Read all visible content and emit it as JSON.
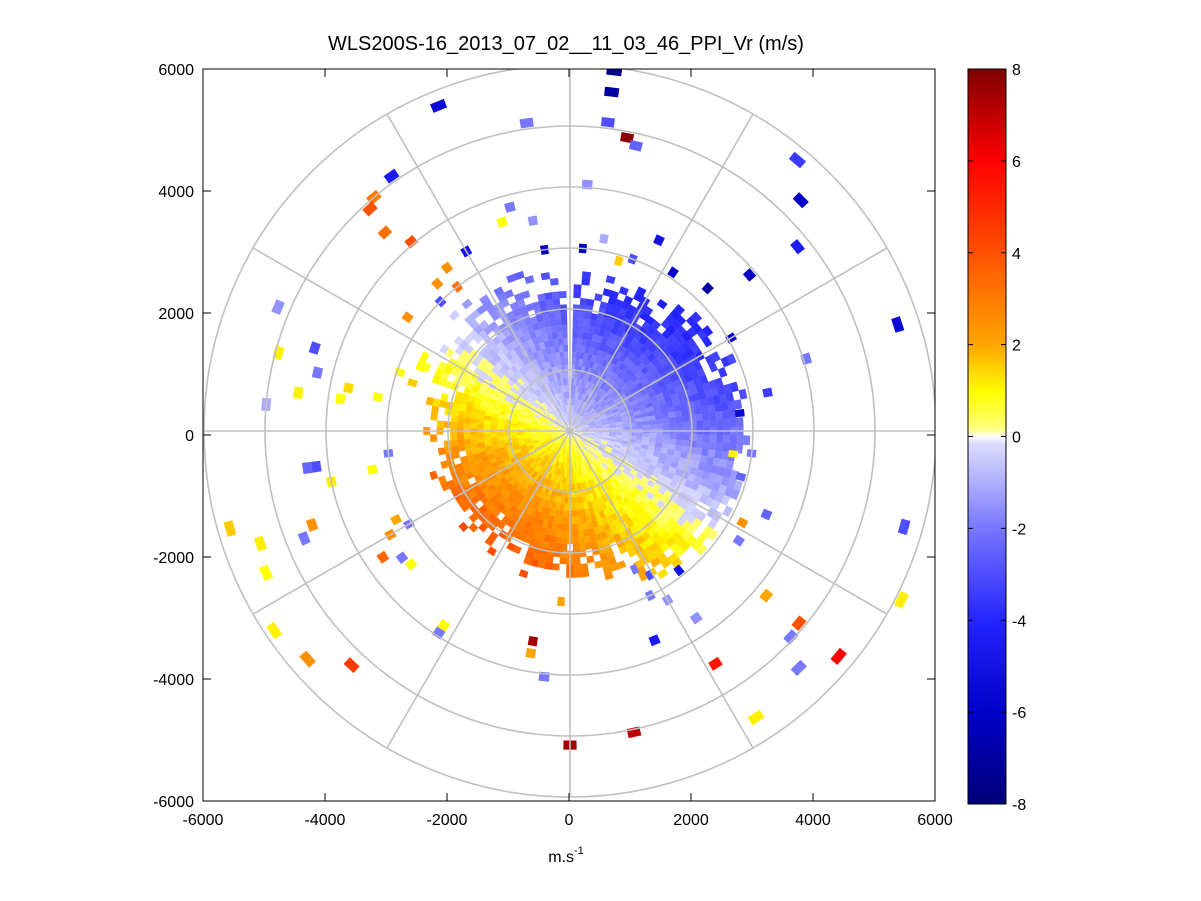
{
  "chart_data": {
    "type": "heatmap",
    "subtype": "polar-ppi",
    "title": "WLS200S-16_2013_07_02__11_03_46_PPI_Vr (m/s)",
    "xlabel": "m.s",
    "xlabel_sup": "-1",
    "ylabel": "",
    "xlim": [
      -6000,
      6000
    ],
    "ylim": [
      -6000,
      6000
    ],
    "xticks": [
      "-6000",
      "-4000",
      "-2000",
      "0",
      "2000",
      "4000",
      "6000"
    ],
    "yticks": [
      "6000",
      "4000",
      "2000",
      "0",
      "-2000",
      "-4000",
      "-6000"
    ],
    "grid_rings": [
      1000,
      2000,
      3000,
      4000,
      5000,
      6000
    ],
    "grid_spokes_deg": [
      0,
      30,
      60,
      90,
      120,
      150,
      180,
      210,
      240,
      270,
      300,
      330
    ],
    "colorbar": {
      "min": -8,
      "max": 8,
      "ticks": [
        "8",
        "6",
        "4",
        "2",
        "0",
        "-2",
        "-4",
        "-6",
        "-8"
      ],
      "colormap": "blue-white-yellow-red"
    },
    "core": {
      "r_min": 150,
      "r_max": 2900,
      "gap_azimuth_deg": [
        -2,
        2
      ],
      "description": "radial velocity field: negative (blue) on north/east side, positive (yellow) on south-west side"
    },
    "scatter_gates": [
      {
        "az": 7,
        "r": 5950,
        "v": -7.5
      },
      {
        "az": 7,
        "r": 5600,
        "v": -7
      },
      {
        "az": 7,
        "r": 5100,
        "v": -3
      },
      {
        "az": 11,
        "r": 4900,
        "v": 7.8
      },
      {
        "az": 13,
        "r": 4800,
        "v": -2.5
      },
      {
        "az": -8,
        "r": 5100,
        "v": -2
      },
      {
        "az": -22,
        "r": 5750,
        "v": -5.5
      },
      {
        "az": 4,
        "r": 4050,
        "v": -1.5
      },
      {
        "az": -15,
        "r": 3800,
        "v": -2
      },
      {
        "az": -18,
        "r": 3600,
        "v": 0.8
      },
      {
        "az": -10,
        "r": 3500,
        "v": -1.5
      },
      {
        "az": -8,
        "r": 3000,
        "v": -6
      },
      {
        "az": 4,
        "r": 3000,
        "v": -6
      },
      {
        "az": 10,
        "r": 3200,
        "v": -1
      },
      {
        "az": 16,
        "r": 2900,
        "v": 1.5
      },
      {
        "az": -30,
        "r": 3400,
        "v": -5
      },
      {
        "az": -35,
        "r": 5100,
        "v": -4.5
      },
      {
        "az": -40,
        "r": 5000,
        "v": 3
      },
      {
        "az": -42,
        "r": 4900,
        "v": 4
      },
      {
        "az": -43,
        "r": 4450,
        "v": 3.2
      },
      {
        "az": -40,
        "r": 4050,
        "v": 4
      },
      {
        "az": -37,
        "r": 3350,
        "v": 2.5
      },
      {
        "az": -42,
        "r": 3250,
        "v": 2.5
      },
      {
        "az": -38,
        "r": 3000,
        "v": 3.3
      },
      {
        "az": -45,
        "r": 3000,
        "v": -3
      },
      {
        "az": -55,
        "r": 3250,
        "v": 2.5
      },
      {
        "az": -67,
        "r": 5200,
        "v": -1.5
      },
      {
        "az": -72,
        "r": 4400,
        "v": -3
      },
      {
        "az": -75,
        "r": 4950,
        "v": 1
      },
      {
        "az": -77,
        "r": 4250,
        "v": -2
      },
      {
        "az": -80,
        "r": 3200,
        "v": 0.8
      },
      {
        "az": -79,
        "r": 3700,
        "v": 1.3
      },
      {
        "az": -82,
        "r": 3800,
        "v": 0.8
      },
      {
        "az": -85,
        "r": 5000,
        "v": -1
      },
      {
        "az": -82,
        "r": 4500,
        "v": 1
      },
      {
        "az": -71,
        "r": 2950,
        "v": 0.8
      },
      {
        "az": -73,
        "r": 2700,
        "v": 1.5
      },
      {
        "az": -67,
        "r": 2650,
        "v": 0.8
      },
      {
        "az": -98,
        "r": 4200,
        "v": -3
      },
      {
        "az": -102,
        "r": 4000,
        "v": 1
      },
      {
        "az": -97,
        "r": 3000,
        "v": -2
      },
      {
        "az": -101,
        "r": 3300,
        "v": 0.8
      },
      {
        "az": -98,
        "r": 4350,
        "v": -2.5
      },
      {
        "az": -110,
        "r": 5400,
        "v": 1
      },
      {
        "az": -106,
        "r": 5800,
        "v": 1.5
      },
      {
        "az": -115,
        "r": 5500,
        "v": 0.8
      },
      {
        "az": -112,
        "r": 4700,
        "v": -2
      },
      {
        "az": -110,
        "r": 4500,
        "v": 2.5
      },
      {
        "az": -117,
        "r": 3200,
        "v": 2
      },
      {
        "az": -120,
        "r": 3400,
        "v": 2.5
      },
      {
        "az": -120,
        "r": 3050,
        "v": -2
      },
      {
        "az": -124,
        "r": 3700,
        "v": 3.5
      },
      {
        "az": -127,
        "r": 3450,
        "v": -2
      },
      {
        "az": -130,
        "r": 3400,
        "v": 0.8
      },
      {
        "az": -124,
        "r": 5850,
        "v": 1
      },
      {
        "az": -131,
        "r": 5700,
        "v": 2.5
      },
      {
        "az": -137,
        "r": 5250,
        "v": 4.5
      },
      {
        "az": -147,
        "r": 3800,
        "v": 0.8
      },
      {
        "az": -147,
        "r": 3950,
        "v": -2
      },
      {
        "az": -170,
        "r": 3500,
        "v": 7.5
      },
      {
        "az": -170,
        "r": 3700,
        "v": 2
      },
      {
        "az": -174,
        "r": 4050,
        "v": -2
      },
      {
        "az": -177,
        "r": 2800,
        "v": 2
      },
      {
        "az": -180,
        "r": 5150,
        "v": 7.5
      },
      {
        "az": 168,
        "r": 5050,
        "v": 7
      },
      {
        "az": 158,
        "r": 3700,
        "v": -4.5
      },
      {
        "az": 154,
        "r": 3000,
        "v": -2
      },
      {
        "az": 151,
        "r": 2700,
        "v": -3
      },
      {
        "az": 150,
        "r": 3200,
        "v": -1.5
      },
      {
        "az": 146,
        "r": 3700,
        "v": -1.5
      },
      {
        "az": 155,
        "r": 2500,
        "v": -2
      },
      {
        "az": 142,
        "r": 2900,
        "v": -5
      },
      {
        "az": 148,
        "r": 4500,
        "v": 5.5
      },
      {
        "az": 147,
        "r": 5600,
        "v": 1
      },
      {
        "az": 136,
        "r": 5400,
        "v": -2
      },
      {
        "az": 133,
        "r": 4950,
        "v": -2
      },
      {
        "az": 130,
        "r": 5750,
        "v": 6
      },
      {
        "az": 130,
        "r": 4900,
        "v": 4
      },
      {
        "az": 130,
        "r": 4200,
        "v": 2
      },
      {
        "az": 118,
        "r": 3200,
        "v": 2.5
      },
      {
        "az": 123,
        "r": 3300,
        "v": -2
      },
      {
        "az": 113,
        "r": 3500,
        "v": -2.5
      },
      {
        "az": 117,
        "r": 6100,
        "v": 1
      },
      {
        "az": 106,
        "r": 5700,
        "v": -3
      },
      {
        "az": 105,
        "r": 2900,
        "v": -2.5
      },
      {
        "az": 97,
        "r": 3000,
        "v": -2
      },
      {
        "az": 98,
        "r": 2700,
        "v": 1
      },
      {
        "az": 84,
        "r": 2800,
        "v": -5.5
      },
      {
        "az": 79,
        "r": 3300,
        "v": -3.5
      },
      {
        "az": 73,
        "r": 4050,
        "v": -2
      },
      {
        "az": 72,
        "r": 5650,
        "v": -5.5
      },
      {
        "az": 60,
        "r": 3050,
        "v": -5.5
      },
      {
        "az": 51,
        "r": 4800,
        "v": -4.5
      },
      {
        "az": 49,
        "r": 3900,
        "v": -6
      },
      {
        "az": 44,
        "r": 3250,
        "v": -7
      },
      {
        "az": 45,
        "r": 5350,
        "v": -6
      },
      {
        "az": 33,
        "r": 3100,
        "v": -6
      },
      {
        "az": 25,
        "r": 3450,
        "v": -5
      },
      {
        "az": 20,
        "r": 3000,
        "v": -3
      },
      {
        "az": 40,
        "r": 5800,
        "v": -3.5
      }
    ]
  }
}
